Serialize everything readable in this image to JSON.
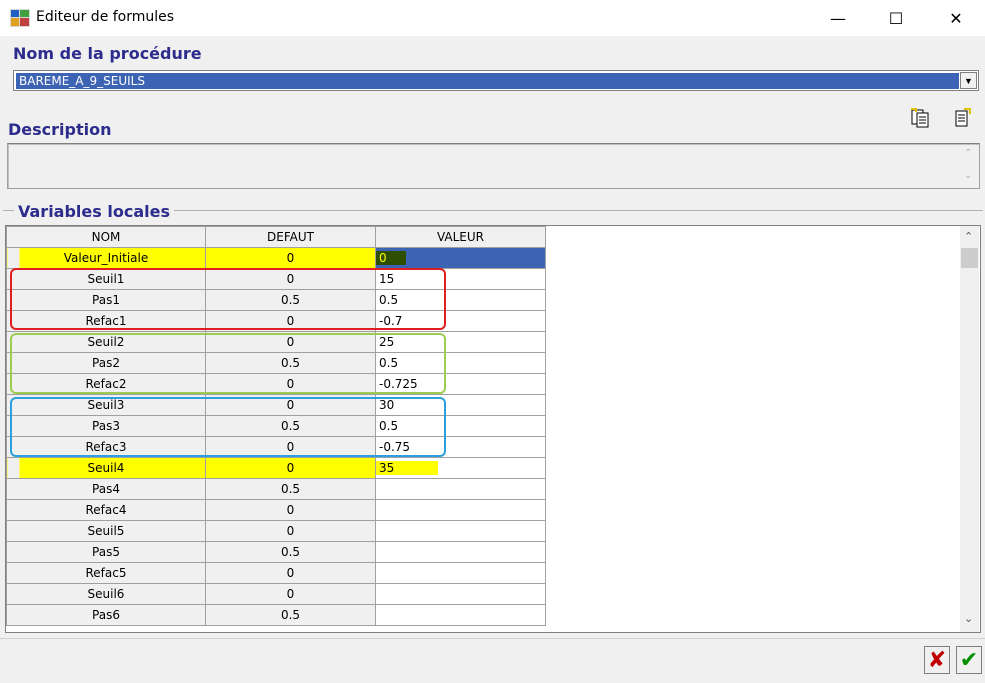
{
  "window": {
    "title": "Editeur de formules",
    "minimize": "—",
    "maximize": "☐",
    "close": "✕"
  },
  "procedure": {
    "label": "Nom de la procédure",
    "value": "BAREME_A_9_SEUILS",
    "dropdown_glyph": "▼"
  },
  "description": {
    "label": "Description",
    "scroll_up": "⌃",
    "scroll_down": "⌄"
  },
  "variables": {
    "label": "Variables locales",
    "columns": [
      "NOM",
      "DEFAUT",
      "VALEUR"
    ],
    "rows": [
      {
        "nom": "Valeur_Initiale",
        "defaut": "0",
        "valeur": "0"
      },
      {
        "nom": "Seuil1",
        "defaut": "0",
        "valeur": "15"
      },
      {
        "nom": "Pas1",
        "defaut": "0.5",
        "valeur": "0.5"
      },
      {
        "nom": "Refac1",
        "defaut": "0",
        "valeur": "-0.7"
      },
      {
        "nom": "Seuil2",
        "defaut": "0",
        "valeur": "25"
      },
      {
        "nom": "Pas2",
        "defaut": "0.5",
        "valeur": "0.5"
      },
      {
        "nom": "Refac2",
        "defaut": "0",
        "valeur": "-0.725"
      },
      {
        "nom": "Seuil3",
        "defaut": "0",
        "valeur": "30"
      },
      {
        "nom": "Pas3",
        "defaut": "0.5",
        "valeur": "0.5"
      },
      {
        "nom": "Refac3",
        "defaut": "0",
        "valeur": "-0.75"
      },
      {
        "nom": "Seuil4",
        "defaut": "0",
        "valeur": "35"
      },
      {
        "nom": "Pas4",
        "defaut": "0.5",
        "valeur": ""
      },
      {
        "nom": "Refac4",
        "defaut": "0",
        "valeur": ""
      },
      {
        "nom": "Seuil5",
        "defaut": "0",
        "valeur": ""
      },
      {
        "nom": "Pas5",
        "defaut": "0.5",
        "valeur": ""
      },
      {
        "nom": "Refac5",
        "defaut": "0",
        "valeur": ""
      },
      {
        "nom": "Seuil6",
        "defaut": "0",
        "valeur": ""
      },
      {
        "nom": "Pas6",
        "defaut": "0.5",
        "valeur": ""
      }
    ],
    "scroll_up": "⌃",
    "scroll_down": "⌄"
  },
  "colors": {
    "label_purple": "#2c2c8c",
    "selection_blue": "#3c63b4",
    "highlight_yellow": "#ffff00",
    "group1_red": "#e02020",
    "group2_green": "#9acd50",
    "group3_blue": "#2aa0e0"
  },
  "footer": {
    "cancel": "✘",
    "ok": "✔"
  }
}
